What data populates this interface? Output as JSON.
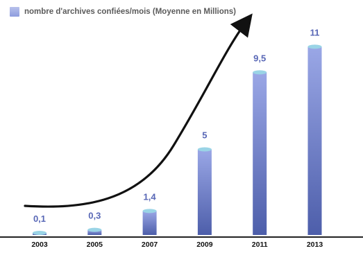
{
  "chart_data": {
    "type": "bar",
    "categories": [
      "2003",
      "2005",
      "2007",
      "2009",
      "2011",
      "2013"
    ],
    "values": [
      0.1,
      0.3,
      1.4,
      5,
      9.5,
      11
    ],
    "data_labels": [
      "0,1",
      "0,3",
      "1,4",
      "5",
      "9,5",
      "11"
    ],
    "series": [
      {
        "name": "nombre d'archives confiées/mois (Moyenne en Millions)",
        "values": [
          0.1,
          0.3,
          1.4,
          5,
          9.5,
          11
        ]
      }
    ],
    "title": "",
    "xlabel": "",
    "ylabel": "",
    "ylim": [
      0,
      11.5
    ],
    "grid": false,
    "legend_position": "top-left",
    "trend_arrow": true,
    "colors": {
      "bar_top": "#9ad4e6",
      "bar_light": "#9aa7e6",
      "bar_dark": "#4d5eaa",
      "label": "#5867b6",
      "axis": "#222222",
      "arrow": "#111111"
    }
  }
}
